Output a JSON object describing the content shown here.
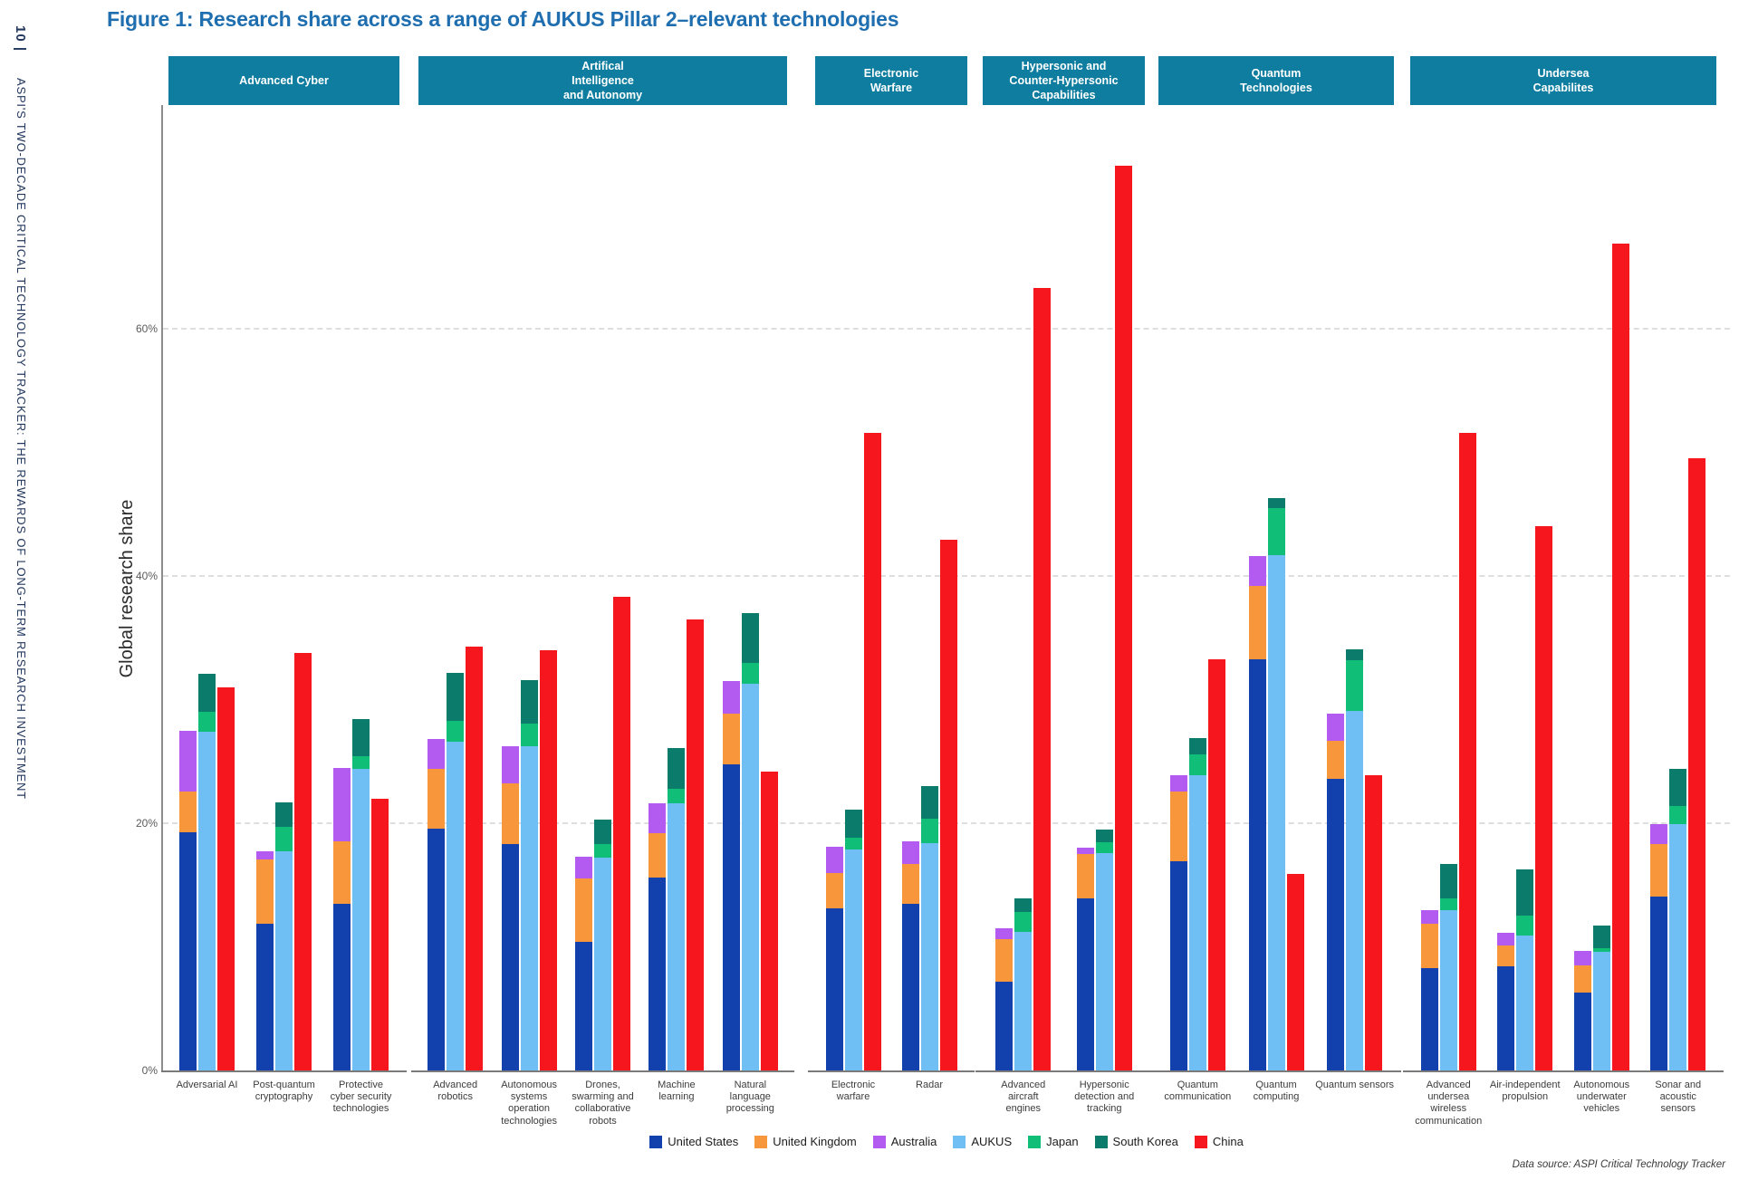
{
  "page": {
    "page_number": "10 |",
    "sidebar_text": "ASPI'S TWO-DECADE CRITICAL TECHNOLOGY TRACKER: THE REWARDS OF LONG-TERM RESEARCH INVESTMENT",
    "title": "Figure 1:  Research share across a range of AUKUS Pillar 2–relevant technologies",
    "data_source": "Data source: ASPI Critical Technology Tracker"
  },
  "colors": {
    "header_teal": "#0F7DA0",
    "title_blue": "#1F6FB0",
    "sidebar_navy": "#22375E"
  },
  "chart_data": {
    "type": "bar",
    "title": "Figure 1: Research share across a range of AUKUS Pillar 2–relevant technologies",
    "ylabel": "Global research share",
    "xlabel": "",
    "ylim": [
      0,
      78
    ],
    "y_ticks": [
      0,
      20,
      40,
      60
    ],
    "y_tick_labels": [
      "0%",
      "20%",
      "40%",
      "60%"
    ],
    "grid": "dashed horizontal at 20/40/60",
    "legend_position": "bottom-center",
    "series": [
      {
        "key": "us",
        "label": "United States",
        "color": "#1241AE"
      },
      {
        "key": "uk",
        "label": "United Kingdom",
        "color": "#F8963C"
      },
      {
        "key": "au",
        "label": "Australia",
        "color": "#B35BF0"
      },
      {
        "key": "aukus",
        "label": "AUKUS",
        "color": "#6FBFF5"
      },
      {
        "key": "jp",
        "label": "Japan",
        "color": "#10BE77"
      },
      {
        "key": "kr",
        "label": "South Korea",
        "color": "#0B7C6C"
      },
      {
        "key": "cn",
        "label": "China",
        "color": "#F6161D"
      }
    ],
    "bar_composition": [
      [
        "us",
        "uk",
        "au"
      ],
      [
        "aukus",
        "jp",
        "kr"
      ],
      [
        "cn"
      ]
    ],
    "panels": [
      {
        "label": "Advanced Cyber",
        "technologies": [
          {
            "label": "Adversarial AI",
            "values": {
              "us": 19.3,
              "uk": 3.3,
              "au": 4.9,
              "aukus": 27.4,
              "jp": 1.6,
              "kr": 3.1,
              "cn": 31.0
            }
          },
          {
            "label": "Post-quantum\ncryptography",
            "values": {
              "us": 11.9,
              "uk": 5.2,
              "au": 0.6,
              "aukus": 17.7,
              "jp": 2.0,
              "kr": 2.0,
              "cn": 33.8
            }
          },
          {
            "label": "Protective\ncyber security\ntechnologies",
            "values": {
              "us": 13.5,
              "uk": 5.0,
              "au": 6.0,
              "aukus": 24.4,
              "jp": 1.0,
              "kr": 3.0,
              "cn": 22.0
            }
          }
        ]
      },
      {
        "label": "Artifical\nIntelligence\nand Autonomy",
        "technologies": [
          {
            "label": "Advanced\nrobotics",
            "values": {
              "us": 19.6,
              "uk": 4.8,
              "au": 2.4,
              "aukus": 26.6,
              "jp": 1.7,
              "kr": 3.9,
              "cn": 34.3
            }
          },
          {
            "label": "Autonomous\nsystems\noperation\ntechnologies",
            "values": {
              "us": 18.3,
              "uk": 4.9,
              "au": 3.0,
              "aukus": 26.2,
              "jp": 1.9,
              "kr": 3.5,
              "cn": 34.0
            }
          },
          {
            "label": "Drones,\nswarming and\ncollaborative\nrobots",
            "values": {
              "us": 10.4,
              "uk": 5.1,
              "au": 1.8,
              "aukus": 17.2,
              "jp": 1.1,
              "kr": 2.0,
              "cn": 38.3
            }
          },
          {
            "label": "Machine\nlearning",
            "values": {
              "us": 15.6,
              "uk": 3.6,
              "au": 2.4,
              "aukus": 21.6,
              "jp": 1.2,
              "kr": 3.3,
              "cn": 36.5
            }
          },
          {
            "label": "Natural\nlanguage\nprocessing",
            "values": {
              "us": 24.8,
              "uk": 4.1,
              "au": 2.6,
              "aukus": 31.3,
              "jp": 1.7,
              "kr": 4.0,
              "cn": 24.2
            }
          }
        ]
      },
      {
        "label": "Electronic\nWarfare",
        "technologies": [
          {
            "label": "Electronic\nwarfare",
            "values": {
              "us": 13.1,
              "uk": 2.9,
              "au": 2.1,
              "aukus": 17.9,
              "jp": 0.9,
              "kr": 2.3,
              "cn": 51.6
            }
          },
          {
            "label": "Radar",
            "values": {
              "us": 13.5,
              "uk": 3.2,
              "au": 1.8,
              "aukus": 18.4,
              "jp": 2.0,
              "kr": 2.6,
              "cn": 42.9
            }
          }
        ]
      },
      {
        "label": "Hypersonic and\nCounter-Hypersonic\nCapabilities",
        "technologies": [
          {
            "label": "Advanced\naircraft\nengines",
            "values": {
              "us": 7.2,
              "uk": 3.4,
              "au": 0.9,
              "aukus": 11.2,
              "jp": 1.6,
              "kr": 1.1,
              "cn": 63.3
            }
          },
          {
            "label": "Hypersonic\ndetection and\ntracking",
            "values": {
              "us": 13.9,
              "uk": 3.6,
              "au": 0.5,
              "aukus": 17.6,
              "jp": 0.9,
              "kr": 1.0,
              "cn": 73.2
            }
          }
        ]
      },
      {
        "label": "Quantum\nTechnologies",
        "technologies": [
          {
            "label": "Quantum\ncommunication",
            "values": {
              "us": 16.9,
              "uk": 5.7,
              "au": 1.3,
              "aukus": 23.9,
              "jp": 1.7,
              "kr": 1.3,
              "cn": 33.3
            }
          },
          {
            "label": "Quantum\ncomputing",
            "values": {
              "us": 33.3,
              "uk": 5.9,
              "au": 2.4,
              "aukus": 41.7,
              "jp": 3.8,
              "kr": 0.8,
              "cn": 15.9
            }
          },
          {
            "label": "Quantum sensors",
            "values": {
              "us": 23.6,
              "uk": 3.1,
              "au": 2.2,
              "aukus": 29.1,
              "jp": 4.1,
              "kr": 0.9,
              "cn": 23.9
            }
          }
        ]
      },
      {
        "label": "Undersea\nCapabilites",
        "technologies": [
          {
            "label": "Advanced\nundersea\nwireless\ncommunication",
            "values": {
              "us": 8.3,
              "uk": 3.6,
              "au": 1.1,
              "aukus": 13.0,
              "jp": 0.9,
              "kr": 2.8,
              "cn": 51.6
            }
          },
          {
            "label": "Air-independent\npropulsion",
            "values": {
              "us": 8.4,
              "uk": 1.7,
              "au": 1.0,
              "aukus": 10.9,
              "jp": 1.6,
              "kr": 3.8,
              "cn": 44.0
            }
          },
          {
            "label": "Autonomous\nunderwater\nvehicles",
            "values": {
              "us": 6.3,
              "uk": 2.2,
              "au": 1.2,
              "aukus": 9.6,
              "jp": 0.3,
              "kr": 1.8,
              "cn": 66.9
            }
          },
          {
            "label": "Sonar and\nacoustic\nsensors",
            "values": {
              "us": 14.1,
              "uk": 4.2,
              "au": 1.6,
              "aukus": 19.9,
              "jp": 1.5,
              "kr": 3.0,
              "cn": 49.5
            }
          }
        ]
      }
    ]
  }
}
